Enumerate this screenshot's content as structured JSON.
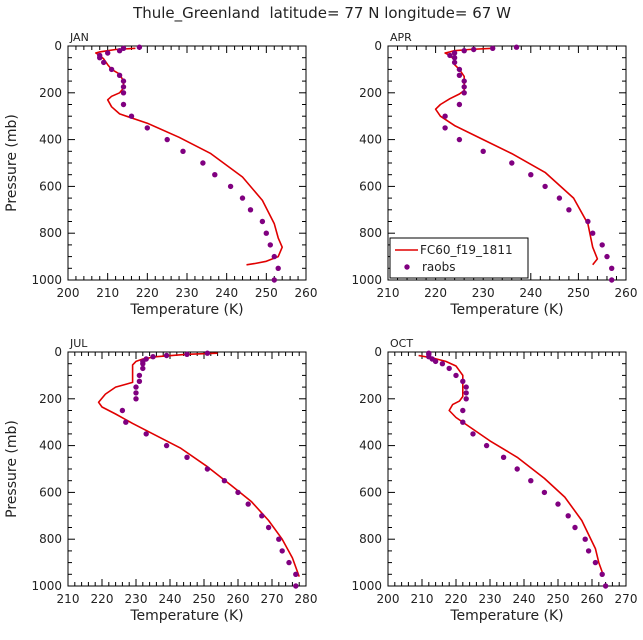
{
  "figure": {
    "title": "Thule_Greenland  latitude= 77 N longitude= 67 W"
  },
  "colors": {
    "model": "#e00000",
    "obs": "#800080",
    "axis": "#000000"
  },
  "legend": {
    "model_label": "FC60_f19_1811",
    "obs_label": "raobs"
  },
  "chart_data": [
    {
      "type": "line",
      "title": "JAN",
      "xlabel": "Temperature (K)",
      "ylabel": "Pressure (mb)",
      "xlim": [
        200,
        260
      ],
      "ylim": [
        1000,
        0
      ],
      "xticks": [
        "200",
        "210",
        "220",
        "230",
        "240",
        "250",
        "260"
      ],
      "yticks": [
        "0",
        "200",
        "400",
        "600",
        "800",
        "1000"
      ],
      "series": [
        {
          "name": "FC60_f19_1811",
          "kind": "line",
          "points": [
            [
              217,
              10
            ],
            [
              212,
              15
            ],
            [
              210,
              20
            ],
            [
              208,
              25
            ],
            [
              207,
              30
            ],
            [
              208,
              40
            ],
            [
              209,
              55
            ],
            [
              210,
              80
            ],
            [
              211,
              100
            ],
            [
              213,
              120
            ],
            [
              214,
              150
            ],
            [
              214,
              180
            ],
            [
              213,
              200
            ],
            [
              211,
              215
            ],
            [
              210,
              230
            ],
            [
              211,
              260
            ],
            [
              213,
              290
            ],
            [
              220,
              330
            ],
            [
              228,
              390
            ],
            [
              236,
              460
            ],
            [
              244,
              560
            ],
            [
              249,
              660
            ],
            [
              252,
              760
            ],
            [
              253,
              820
            ],
            [
              254,
              860
            ],
            [
              253,
              900
            ],
            [
              250,
              920
            ],
            [
              247,
              930
            ],
            [
              245,
              935
            ]
          ]
        },
        {
          "name": "raobs",
          "kind": "scatter",
          "points": [
            [
              218,
              5
            ],
            [
              214,
              10
            ],
            [
              213,
              20
            ],
            [
              210,
              30
            ],
            [
              208,
              40
            ],
            [
              208,
              50
            ],
            [
              209,
              70
            ],
            [
              211,
              100
            ],
            [
              213,
              125
            ],
            [
              214,
              150
            ],
            [
              214,
              175
            ],
            [
              214,
              200
            ],
            [
              214,
              250
            ],
            [
              216,
              300
            ],
            [
              220,
              350
            ],
            [
              225,
              400
            ],
            [
              229,
              450
            ],
            [
              234,
              500
            ],
            [
              237,
              550
            ],
            [
              241,
              600
            ],
            [
              244,
              650
            ],
            [
              246,
              700
            ],
            [
              249,
              750
            ],
            [
              250,
              800
            ],
            [
              251,
              850
            ],
            [
              252,
              900
            ],
            [
              253,
              950
            ],
            [
              252,
              1000
            ]
          ]
        }
      ]
    },
    {
      "type": "line",
      "title": "APR",
      "xlabel": "Temperature (K)",
      "ylabel": "",
      "xlim": [
        210,
        260
      ],
      "ylim": [
        1000,
        0
      ],
      "xticks": [
        "210",
        "220",
        "230",
        "240",
        "250",
        "260"
      ],
      "yticks": [
        "0",
        "200",
        "400",
        "600",
        "800",
        "1000"
      ],
      "series": [
        {
          "name": "FC60_f19_1811",
          "kind": "line",
          "points": [
            [
              232,
              10
            ],
            [
              227,
              15
            ],
            [
              224,
              20
            ],
            [
              223,
              25
            ],
            [
              222,
              30
            ],
            [
              223,
              40
            ],
            [
              224,
              60
            ],
            [
              224,
              80
            ],
            [
              225,
              100
            ],
            [
              226,
              130
            ],
            [
              226,
              160
            ],
            [
              226,
              190
            ],
            [
              225,
              205
            ],
            [
              223,
              225
            ],
            [
              221,
              250
            ],
            [
              220,
              270
            ],
            [
              221,
              300
            ],
            [
              224,
              340
            ],
            [
              230,
              400
            ],
            [
              236,
              460
            ],
            [
              243,
              540
            ],
            [
              249,
              650
            ],
            [
              252,
              760
            ],
            [
              253,
              860
            ],
            [
              254,
              910
            ],
            [
              253,
              935
            ]
          ]
        },
        {
          "name": "raobs",
          "kind": "scatter",
          "points": [
            [
              237,
              5
            ],
            [
              232,
              10
            ],
            [
              228,
              15
            ],
            [
              226,
              20
            ],
            [
              224,
              30
            ],
            [
              223,
              40
            ],
            [
              224,
              50
            ],
            [
              224,
              70
            ],
            [
              225,
              100
            ],
            [
              225,
              125
            ],
            [
              226,
              150
            ],
            [
              226,
              175
            ],
            [
              226,
              200
            ],
            [
              225,
              250
            ],
            [
              222,
              300
            ],
            [
              222,
              350
            ],
            [
              225,
              400
            ],
            [
              230,
              450
            ],
            [
              236,
              500
            ],
            [
              240,
              550
            ],
            [
              243,
              600
            ],
            [
              246,
              650
            ],
            [
              248,
              700
            ],
            [
              252,
              750
            ],
            [
              253,
              800
            ],
            [
              255,
              850
            ],
            [
              256,
              900
            ],
            [
              257,
              950
            ],
            [
              257,
              1000
            ]
          ]
        }
      ]
    },
    {
      "type": "line",
      "title": "JUL",
      "xlabel": "Temperature (K)",
      "ylabel": "Pressure (mb)",
      "xlim": [
        210,
        280
      ],
      "ylim": [
        1000,
        0
      ],
      "xticks": [
        "210",
        "220",
        "230",
        "240",
        "250",
        "260",
        "270",
        "280"
      ],
      "yticks": [
        "0",
        "200",
        "400",
        "600",
        "800",
        "1000"
      ],
      "series": [
        {
          "name": "FC60_f19_1811",
          "kind": "line",
          "points": [
            [
              254,
              5
            ],
            [
              245,
              10
            ],
            [
              236,
              20
            ],
            [
              232,
              30
            ],
            [
              230,
              40
            ],
            [
              229,
              55
            ],
            [
              229,
              80
            ],
            [
              229,
              100
            ],
            [
              229,
              130
            ],
            [
              224,
              150
            ],
            [
              221,
              180
            ],
            [
              219,
              215
            ],
            [
              220,
              235
            ],
            [
              224,
              265
            ],
            [
              229,
              305
            ],
            [
              235,
              350
            ],
            [
              243,
              410
            ],
            [
              251,
              490
            ],
            [
              258,
              570
            ],
            [
              264,
              640
            ],
            [
              269,
              720
            ],
            [
              273,
              800
            ],
            [
              276,
              880
            ],
            [
              278,
              960
            ]
          ]
        },
        {
          "name": "raobs",
          "kind": "scatter",
          "points": [
            [
              251,
              5
            ],
            [
              245,
              10
            ],
            [
              239,
              15
            ],
            [
              235,
              20
            ],
            [
              233,
              30
            ],
            [
              232,
              40
            ],
            [
              232,
              50
            ],
            [
              232,
              70
            ],
            [
              231,
              100
            ],
            [
              231,
              125
            ],
            [
              230,
              150
            ],
            [
              230,
              175
            ],
            [
              230,
              200
            ],
            [
              226,
              250
            ],
            [
              227,
              300
            ],
            [
              233,
              350
            ],
            [
              239,
              400
            ],
            [
              245,
              450
            ],
            [
              251,
              500
            ],
            [
              256,
              550
            ],
            [
              260,
              600
            ],
            [
              263,
              650
            ],
            [
              267,
              700
            ],
            [
              269,
              750
            ],
            [
              272,
              800
            ],
            [
              273,
              850
            ],
            [
              275,
              900
            ],
            [
              277,
              950
            ],
            [
              277,
              1000
            ]
          ]
        }
      ]
    },
    {
      "type": "line",
      "title": "OCT",
      "xlabel": "Temperature (K)",
      "ylabel": "",
      "xlim": [
        200,
        270
      ],
      "ylim": [
        1000,
        0
      ],
      "xticks": [
        "200",
        "210",
        "220",
        "230",
        "240",
        "250",
        "260",
        "270"
      ],
      "yticks": [
        "0",
        "200",
        "400",
        "600",
        "800",
        "1000"
      ],
      "series": [
        {
          "name": "FC60_f19_1811",
          "kind": "line",
          "points": [
            [
              209,
              15
            ],
            [
              213,
              25
            ],
            [
              217,
              40
            ],
            [
              220,
              60
            ],
            [
              221,
              80
            ],
            [
              222,
              100
            ],
            [
              222,
              130
            ],
            [
              222,
              160
            ],
            [
              222,
              190
            ],
            [
              221,
              210
            ],
            [
              219,
              225
            ],
            [
              218,
              250
            ],
            [
              220,
              280
            ],
            [
              224,
              320
            ],
            [
              230,
              380
            ],
            [
              238,
              450
            ],
            [
              246,
              540
            ],
            [
              252,
              620
            ],
            [
              257,
              720
            ],
            [
              261,
              840
            ],
            [
              262,
              900
            ],
            [
              263,
              940
            ]
          ]
        },
        {
          "name": "raobs",
          "kind": "scatter",
          "points": [
            [
              212,
              5
            ],
            [
              212,
              10
            ],
            [
              212,
              20
            ],
            [
              213,
              30
            ],
            [
              214,
              40
            ],
            [
              216,
              50
            ],
            [
              218,
              70
            ],
            [
              220,
              100
            ],
            [
              222,
              125
            ],
            [
              223,
              150
            ],
            [
              223,
              175
            ],
            [
              223,
              200
            ],
            [
              222,
              250
            ],
            [
              222,
              300
            ],
            [
              225,
              350
            ],
            [
              229,
              400
            ],
            [
              234,
              450
            ],
            [
              238,
              500
            ],
            [
              242,
              550
            ],
            [
              246,
              600
            ],
            [
              250,
              650
            ],
            [
              253,
              700
            ],
            [
              255,
              750
            ],
            [
              258,
              800
            ],
            [
              259,
              850
            ],
            [
              261,
              900
            ],
            [
              263,
              950
            ],
            [
              264,
              1000
            ]
          ]
        }
      ]
    }
  ]
}
